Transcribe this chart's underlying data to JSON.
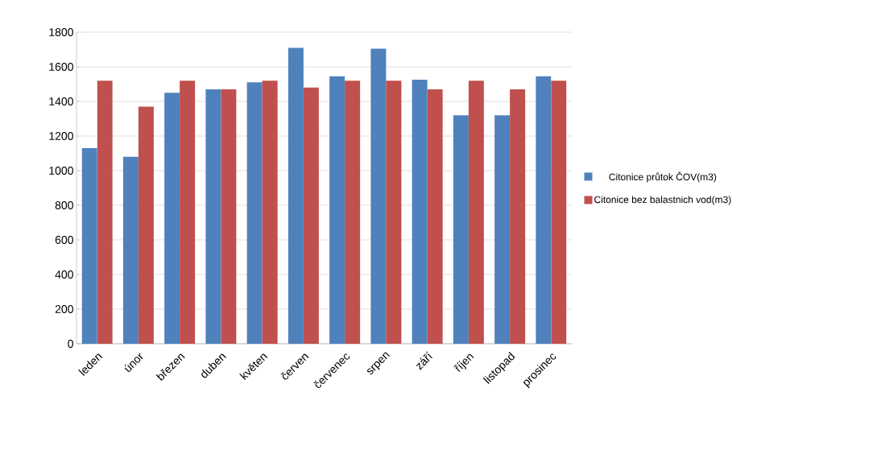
{
  "chart_data": {
    "type": "bar",
    "categories": [
      "leden",
      "únor",
      "březen",
      "duben",
      "květen",
      "červen",
      "červenec",
      "srpen",
      "září",
      "říjen",
      "listopad",
      "prosinec"
    ],
    "series": [
      {
        "name": "Citonice průtok ČOV(m3)",
        "color": "#4f81bd",
        "values": [
          1130,
          1080,
          1450,
          1470,
          1510,
          1710,
          1545,
          1705,
          1525,
          1320,
          1320,
          1545
        ]
      },
      {
        "name": "Citonice bez balastnich vod(m3)",
        "color": "#c0504d",
        "values": [
          1520,
          1370,
          1520,
          1470,
          1520,
          1480,
          1520,
          1520,
          1470,
          1520,
          1470,
          1520
        ]
      }
    ],
    "ylim": [
      0,
      1800
    ],
    "yticks": [
      0,
      200,
      400,
      600,
      800,
      1000,
      1200,
      1400,
      1600,
      1800
    ],
    "grid": "y",
    "legend": "right"
  }
}
